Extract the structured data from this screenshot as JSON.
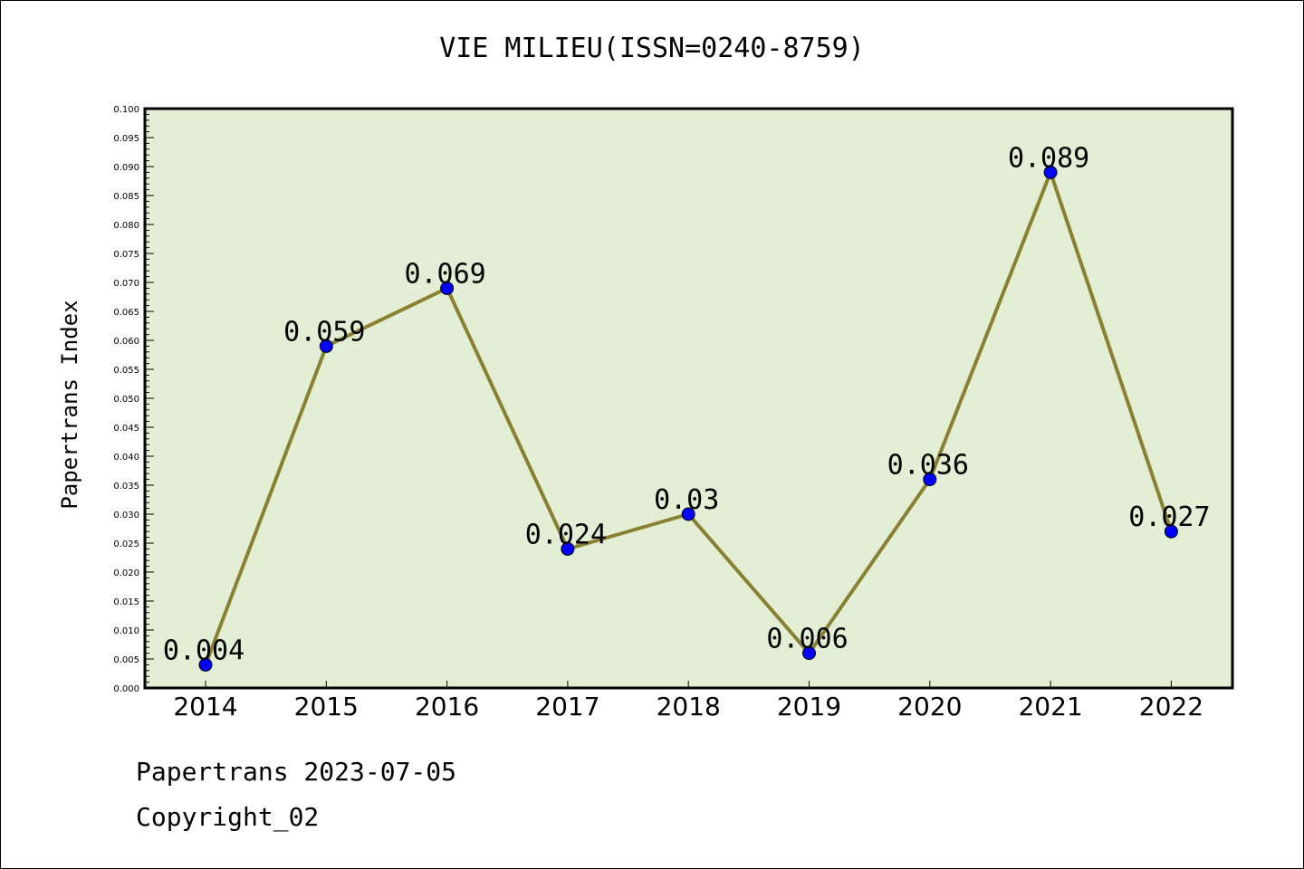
{
  "chart_data": {
    "type": "line",
    "title": "VIE MILIEU(ISSN=0240-8759)",
    "xlabel": "",
    "ylabel": "Papertrans Index",
    "categories": [
      "2014",
      "2015",
      "2016",
      "2017",
      "2018",
      "2019",
      "2020",
      "2021",
      "2022"
    ],
    "series": [
      {
        "values": [
          0.004,
          0.059,
          0.069,
          0.024,
          0.03,
          0.006,
          0.036,
          0.089,
          0.027
        ],
        "labels": [
          "0.004",
          "0.059",
          "0.069",
          "0.024",
          "0.03",
          "0.006",
          "0.036",
          "0.089",
          "0.027"
        ]
      }
    ],
    "ylim": [
      0,
      0.1
    ],
    "yticks": [
      "0.000",
      "0.005",
      "0.010",
      "0.015",
      "0.020",
      "0.025",
      "0.030",
      "0.035",
      "0.040",
      "0.045",
      "0.050",
      "0.055",
      "0.060",
      "0.065",
      "0.070",
      "0.075",
      "0.080",
      "0.085",
      "0.090",
      "0.095",
      "0.100"
    ],
    "grid": false,
    "legend": "none",
    "colors": {
      "plot_background": "#e2efd5",
      "line": "#8b8032",
      "marker": "#0000ff"
    }
  },
  "footer": {
    "line1": "Papertrans 2023-07-05",
    "line2": "Copyright_02"
  }
}
